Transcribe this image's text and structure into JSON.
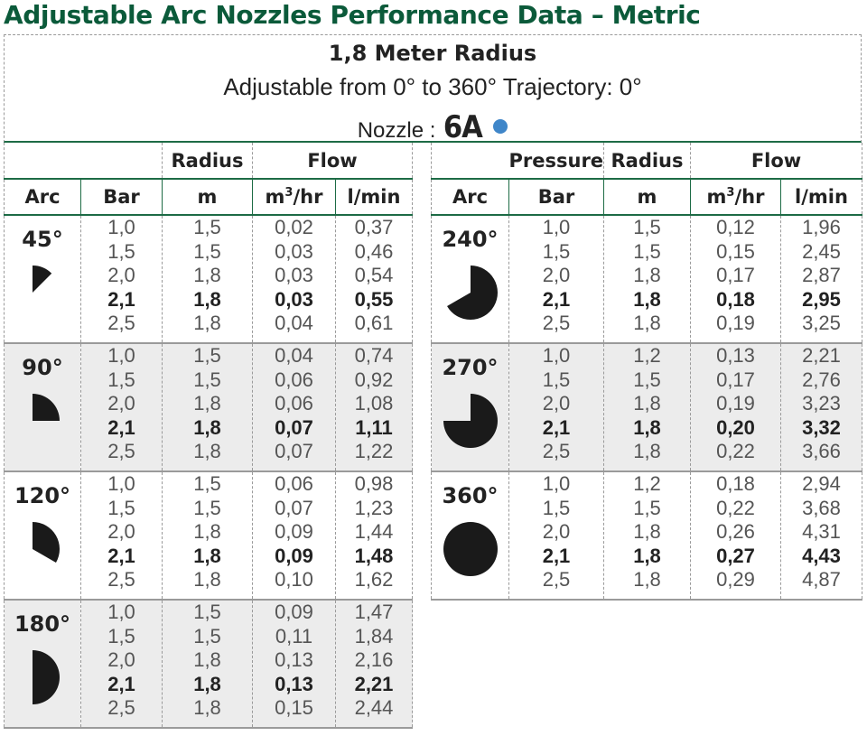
{
  "title": "Adjustable Arc Nozzles Performance Data – Metric",
  "header": {
    "radius_title": "1,8 Meter Radius",
    "trajectory": "Adjustable from 0° to 360° Trajectory: 0°",
    "nozzle_label": "Nozzle :",
    "nozzle_value": "6A",
    "nozzle_color": "#3f86c9"
  },
  "columns": {
    "pressure": "Pressure",
    "radius": "Radius",
    "flow": "Flow",
    "arc": "Arc",
    "bar": "Bar",
    "m": "m",
    "m3hr_base": "m",
    "m3hr_sup": "3",
    "m3hr_tail": "/hr",
    "lmin": "l/min"
  },
  "left_table": [
    {
      "arc": "45°",
      "degrees": 45,
      "shaded": false,
      "bar": [
        "1,0",
        "1,5",
        "2,0",
        "2,1",
        "2,5"
      ],
      "m": [
        "1,5",
        "1,5",
        "1,8",
        "1,8",
        "1,8"
      ],
      "m3hr": [
        "0,02",
        "0,03",
        "0,03",
        "0,03",
        "0,04"
      ],
      "lmin": [
        "0,37",
        "0,46",
        "0,54",
        "0,55",
        "0,61"
      ]
    },
    {
      "arc": "90°",
      "degrees": 90,
      "shaded": true,
      "bar": [
        "1,0",
        "1,5",
        "2,0",
        "2,1",
        "2,5"
      ],
      "m": [
        "1,5",
        "1,5",
        "1,8",
        "1,8",
        "1,8"
      ],
      "m3hr": [
        "0,04",
        "0,06",
        "0,06",
        "0,07",
        "0,07"
      ],
      "lmin": [
        "0,74",
        "0,92",
        "1,08",
        "1,11",
        "1,22"
      ]
    },
    {
      "arc": "120°",
      "degrees": 120,
      "shaded": false,
      "bar": [
        "1,0",
        "1,5",
        "2,0",
        "2,1",
        "2,5"
      ],
      "m": [
        "1,5",
        "1,5",
        "1,8",
        "1,8",
        "1,8"
      ],
      "m3hr": [
        "0,06",
        "0,07",
        "0,09",
        "0,09",
        "0,10"
      ],
      "lmin": [
        "0,98",
        "1,23",
        "1,44",
        "1,48",
        "1,62"
      ]
    },
    {
      "arc": "180°",
      "degrees": 180,
      "shaded": true,
      "bar": [
        "1,0",
        "1,5",
        "2,0",
        "2,1",
        "2,5"
      ],
      "m": [
        "1,5",
        "1,5",
        "1,8",
        "1,8",
        "1,8"
      ],
      "m3hr": [
        "0,09",
        "0,11",
        "0,13",
        "0,13",
        "0,15"
      ],
      "lmin": [
        "1,47",
        "1,84",
        "2,16",
        "2,21",
        "2,44"
      ]
    }
  ],
  "right_table": [
    {
      "arc": "240°",
      "degrees": 240,
      "shaded": false,
      "bar": [
        "1,0",
        "1,5",
        "2,0",
        "2,1",
        "2,5"
      ],
      "m": [
        "1,5",
        "1,5",
        "1,8",
        "1,8",
        "1,8"
      ],
      "m3hr": [
        "0,12",
        "0,15",
        "0,17",
        "0,18",
        "0,19"
      ],
      "lmin": [
        "1,96",
        "2,45",
        "2,87",
        "2,95",
        "3,25"
      ]
    },
    {
      "arc": "270°",
      "degrees": 270,
      "shaded": true,
      "bar": [
        "1,0",
        "1,5",
        "2,0",
        "2,1",
        "2,5"
      ],
      "m": [
        "1,2",
        "1,5",
        "1,8",
        "1,8",
        "1,8"
      ],
      "m3hr": [
        "0,13",
        "0,17",
        "0,19",
        "0,20",
        "0,22"
      ],
      "lmin": [
        "2,21",
        "2,76",
        "3,23",
        "3,32",
        "3,66"
      ]
    },
    {
      "arc": "360°",
      "degrees": 360,
      "shaded": false,
      "bar": [
        "1,0",
        "1,5",
        "2,0",
        "2,1",
        "2,5"
      ],
      "m": [
        "1,2",
        "1,5",
        "1,8",
        "1,8",
        "1,8"
      ],
      "m3hr": [
        "0,18",
        "0,22",
        "0,26",
        "0,27",
        "0,29"
      ],
      "lmin": [
        "2,94",
        "3,68",
        "4,31",
        "4,43",
        "4,87"
      ]
    }
  ],
  "bold_row_index": 3,
  "icon_color": "#1a1a1a"
}
